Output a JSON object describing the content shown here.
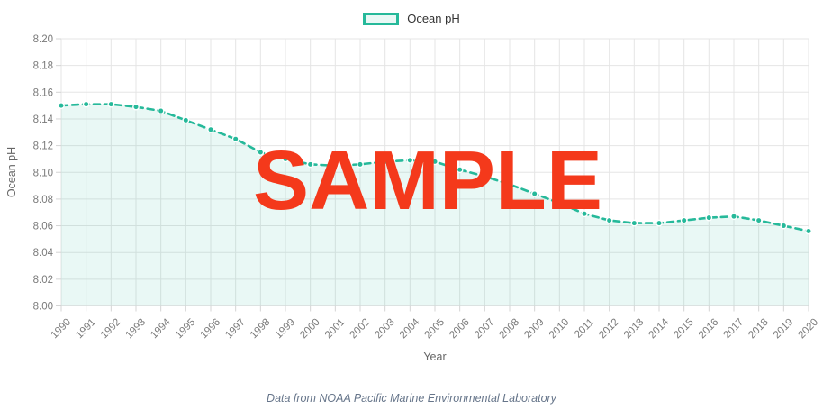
{
  "legend": {
    "label": "Ocean pH"
  },
  "watermark": {
    "text": "SAMPLE",
    "color": "#f4391b"
  },
  "caption": "Data from NOAA Pacific Marine Environmental Laboratory",
  "colors": {
    "line": "#26b99a",
    "point": "#26b99a",
    "point_border": "#ffffff",
    "area_fill": "rgba(38,185,154,0.10)",
    "grid": "#e5e5e5",
    "tick_mark": "#d4d4d4",
    "tick_text": "#7a7a7a",
    "axis_title_text": "#666666",
    "legend_text": "#333333",
    "caption_text": "#66758a"
  },
  "chart_data": {
    "type": "line",
    "title": "",
    "xlabel": "Year",
    "ylabel": "Ocean pH",
    "x": [
      1990,
      1991,
      1992,
      1993,
      1994,
      1995,
      1996,
      1997,
      1998,
      1999,
      2000,
      2001,
      2002,
      2003,
      2004,
      2005,
      2006,
      2007,
      2008,
      2009,
      2010,
      2011,
      2012,
      2013,
      2014,
      2015,
      2016,
      2017,
      2018,
      2019,
      2020
    ],
    "series": [
      {
        "name": "Ocean pH",
        "values": [
          8.15,
          8.151,
          8.151,
          8.149,
          8.146,
          8.139,
          8.132,
          8.125,
          8.115,
          8.11,
          8.106,
          8.105,
          8.106,
          8.108,
          8.109,
          8.108,
          8.102,
          8.097,
          8.091,
          8.084,
          8.077,
          8.069,
          8.064,
          8.062,
          8.062,
          8.064,
          8.066,
          8.067,
          8.064,
          8.06,
          8.056
        ]
      }
    ],
    "ylim": [
      8.0,
      8.2
    ],
    "ytick_step": 0.02,
    "grid": true,
    "legend_position": "top",
    "line_style": "dashed",
    "area_fill": true,
    "point_style": "circle"
  }
}
